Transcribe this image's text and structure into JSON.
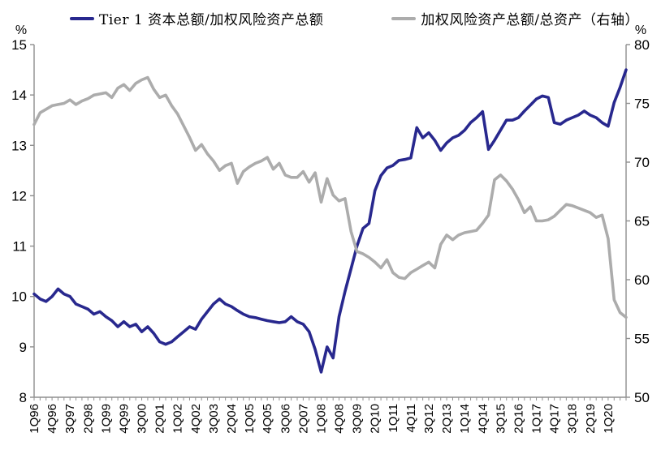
{
  "legend": [
    {
      "label": "Tier 1 资本总额/加权风险资产总额",
      "color": "#28288E"
    },
    {
      "label": "加权风险资产总额/总资产（右轴）",
      "color": "#ACACAC"
    }
  ],
  "chart_data": {
    "type": "line",
    "title": "",
    "n_points": 100,
    "x_tick_every": 3,
    "x_tick_labels": [
      "1Q96",
      "4Q96",
      "3Q97",
      "2Q98",
      "1Q99",
      "4Q99",
      "3Q00",
      "2Q01",
      "1Q02",
      "4Q02",
      "3Q03",
      "2Q04",
      "1Q05",
      "4Q05",
      "3Q06",
      "2Q07",
      "1Q08",
      "4Q08",
      "3Q09",
      "2Q10",
      "1Q11",
      "4Q11",
      "3Q12",
      "2Q13",
      "1Q14",
      "4Q14",
      "3Q15",
      "2Q16",
      "1Q17",
      "4Q17",
      "3Q18",
      "2Q19",
      "1Q20"
    ],
    "left_axis": {
      "unit": "%",
      "min": 8,
      "max": 15,
      "step": 1
    },
    "right_axis": {
      "unit": "%",
      "min": 50,
      "max": 80,
      "step": 5
    },
    "grid": false,
    "legend_position": "top",
    "series": [
      {
        "name": "Tier 1 资本总额/加权风险资产总额",
        "axis": "left",
        "color": "#28288E",
        "values": [
          10.05,
          9.95,
          9.9,
          10.0,
          10.15,
          10.05,
          10.0,
          9.85,
          9.8,
          9.75,
          9.65,
          9.7,
          9.6,
          9.52,
          9.4,
          9.5,
          9.4,
          9.45,
          9.3,
          9.4,
          9.27,
          9.1,
          9.05,
          9.1,
          9.2,
          9.3,
          9.4,
          9.35,
          9.55,
          9.7,
          9.85,
          9.95,
          9.85,
          9.8,
          9.72,
          9.65,
          9.6,
          9.58,
          9.55,
          9.52,
          9.5,
          9.48,
          9.5,
          9.6,
          9.5,
          9.45,
          9.3,
          8.95,
          8.5,
          9.0,
          8.78,
          9.6,
          10.1,
          10.55,
          11.0,
          11.35,
          11.45,
          12.1,
          12.4,
          12.55,
          12.6,
          12.7,
          12.72,
          12.75,
          13.35,
          13.15,
          13.25,
          13.1,
          12.9,
          13.05,
          13.15,
          13.2,
          13.3,
          13.45,
          13.55,
          13.67,
          12.92,
          13.1,
          13.3,
          13.5,
          13.5,
          13.55,
          13.68,
          13.8,
          13.92,
          13.98,
          13.95,
          13.45,
          13.42,
          13.5,
          13.55,
          13.6,
          13.68,
          13.6,
          13.55,
          13.45,
          13.38,
          13.85,
          14.15,
          14.5
        ]
      },
      {
        "name": "加权风险资产总额/总资产（右轴）",
        "axis": "right",
        "color": "#ACACAC",
        "values": [
          73.2,
          74.2,
          74.5,
          74.8,
          74.9,
          75.0,
          75.3,
          74.9,
          75.2,
          75.4,
          75.7,
          75.8,
          75.9,
          75.5,
          76.3,
          76.6,
          76.1,
          76.7,
          77.0,
          77.2,
          76.2,
          75.5,
          75.7,
          74.8,
          74.1,
          73.1,
          72.1,
          71.0,
          71.5,
          70.7,
          70.1,
          69.3,
          69.7,
          69.9,
          68.2,
          69.2,
          69.6,
          69.9,
          70.1,
          70.4,
          69.4,
          69.9,
          68.9,
          68.7,
          68.7,
          69.2,
          68.3,
          69.1,
          66.6,
          68.6,
          67.2,
          66.7,
          66.9,
          64.1,
          62.4,
          62.2,
          61.9,
          61.5,
          61.0,
          61.7,
          60.6,
          60.2,
          60.1,
          60.6,
          60.9,
          61.2,
          61.5,
          61.0,
          63.0,
          63.8,
          63.4,
          63.8,
          64.0,
          64.1,
          64.2,
          64.8,
          65.5,
          68.5,
          68.9,
          68.4,
          67.7,
          66.8,
          65.7,
          66.2,
          65.0,
          65.0,
          65.1,
          65.4,
          65.9,
          66.4,
          66.3,
          66.1,
          65.9,
          65.7,
          65.3,
          65.5,
          63.5,
          58.3,
          57.2,
          56.8
        ]
      }
    ]
  },
  "colors": {
    "axis": "#8F8F8F",
    "text": "#000000",
    "background": "#FFFFFF"
  }
}
